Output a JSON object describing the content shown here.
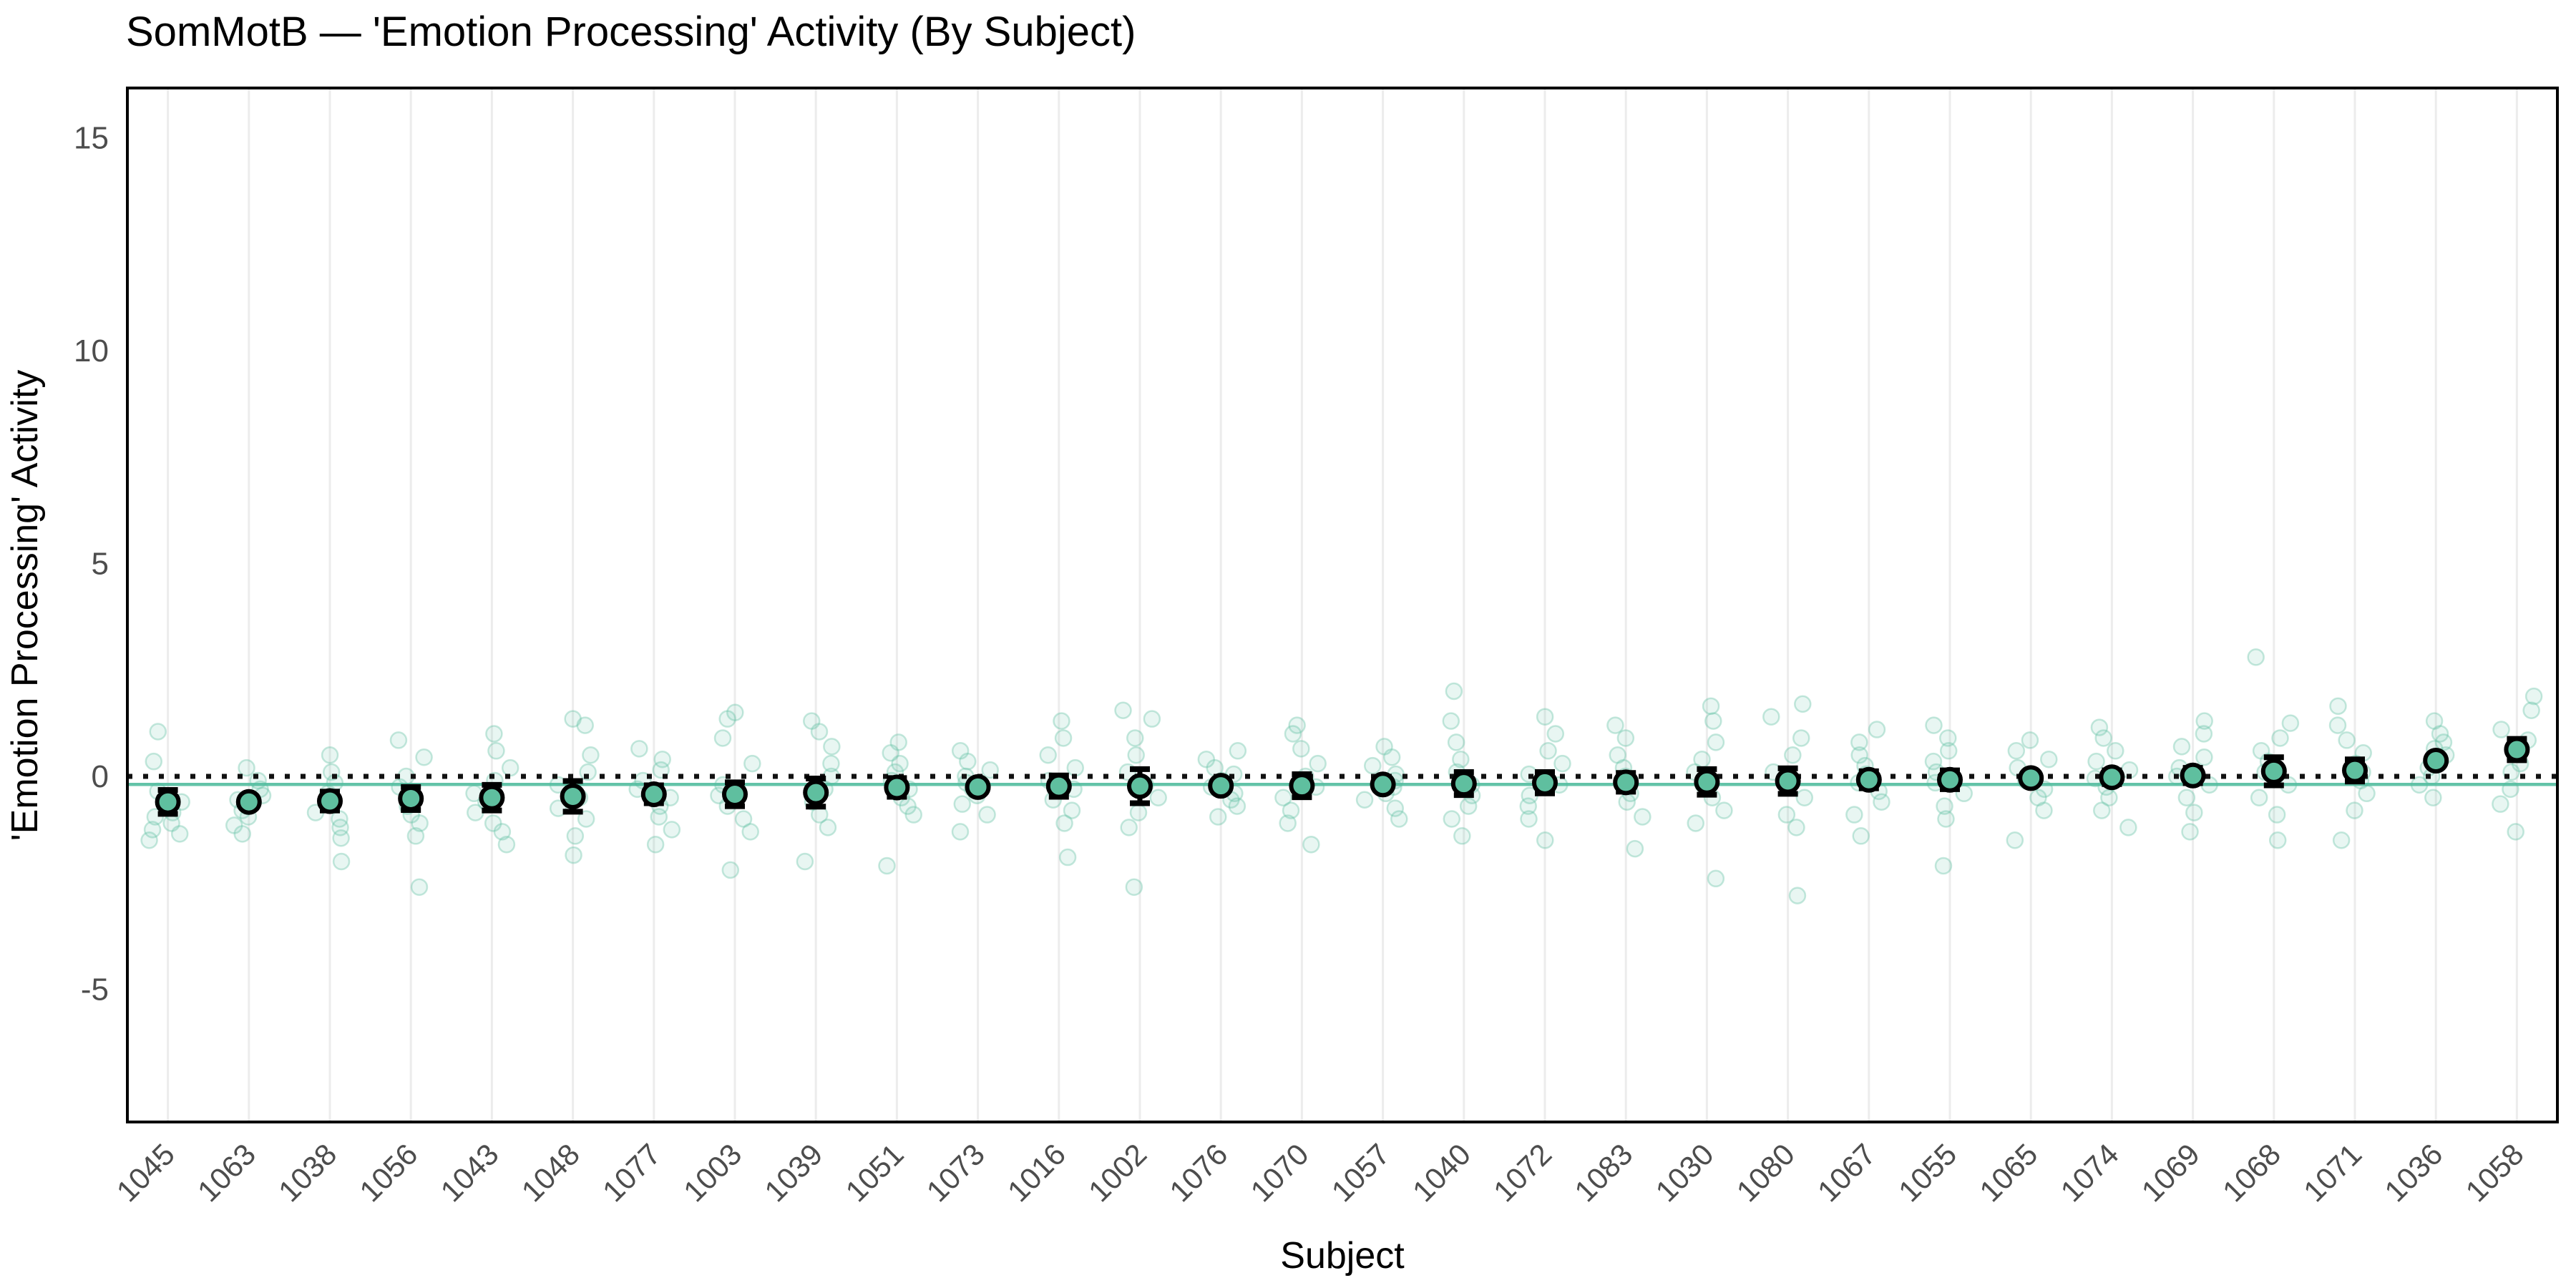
{
  "chart_data": {
    "type": "scatter",
    "title": "SomMotB — 'Emotion Processing' Activity (By Subject)",
    "xlabel": "Subject",
    "ylabel": "'Emotion Processing' Activity",
    "y_ticks": [
      15,
      10,
      5,
      0,
      -5
    ],
    "ylim": [
      -8.1,
      16.2
    ],
    "grid": "vertical-only",
    "legend": "none",
    "reference_lines": {
      "zero_line_value": 0,
      "zero_line_style": "dotted-black",
      "grand_mean_value": -0.19,
      "grand_mean_style": "solid-green"
    },
    "colors": {
      "marker_fill": "#5FBF9F",
      "marker_stroke": "#000000",
      "trial_point": "#66C2A5",
      "grand_mean_line": "#52BD9E",
      "zero_line": "#111111",
      "gridline": "#ECECEC",
      "tick_label": "#4D4D4D",
      "panel_border": "#000000"
    },
    "subjects": [
      {
        "id": "1045",
        "mean": -0.6,
        "ci": 0.28,
        "trials": [
          -1.5,
          -1.35,
          -1.25,
          -1.1,
          -0.95,
          -0.85,
          -0.6,
          -0.35,
          0.35,
          1.05
        ]
      },
      {
        "id": "1063",
        "mean": -0.6,
        "ci": 0.13,
        "trials": [
          -1.35,
          -1.15,
          -0.95,
          -0.8,
          -0.7,
          -0.55,
          -0.45,
          -0.3,
          -0.1,
          0.2
        ]
      },
      {
        "id": "1038",
        "mean": -0.58,
        "ci": 0.22,
        "trials": [
          -2.0,
          -1.45,
          -1.2,
          -1.0,
          -0.85,
          -0.6,
          -0.4,
          -0.15,
          0.1,
          0.5
        ]
      },
      {
        "id": "1056",
        "mean": -0.52,
        "ci": 0.27,
        "trials": [
          -2.6,
          -1.4,
          -1.1,
          -0.9,
          -0.7,
          -0.5,
          -0.25,
          0.0,
          0.45,
          0.85
        ]
      },
      {
        "id": "1043",
        "mean": -0.5,
        "ci": 0.3,
        "trials": [
          -1.6,
          -1.3,
          -1.1,
          -0.85,
          -0.6,
          -0.4,
          -0.1,
          0.2,
          0.6,
          1.0
        ]
      },
      {
        "id": "1048",
        "mean": -0.47,
        "ci": 0.36,
        "trials": [
          -1.85,
          -1.4,
          -1.0,
          -0.75,
          -0.5,
          -0.2,
          0.1,
          0.5,
          1.2,
          1.35
        ]
      },
      {
        "id": "1077",
        "mean": -0.42,
        "ci": 0.21,
        "trials": [
          -1.6,
          -1.25,
          -0.95,
          -0.7,
          -0.5,
          -0.3,
          -0.1,
          0.15,
          0.4,
          0.65
        ]
      },
      {
        "id": "1003",
        "mean": -0.42,
        "ci": 0.28,
        "trials": [
          -2.2,
          -1.3,
          -1.0,
          -0.7,
          -0.45,
          -0.2,
          0.3,
          0.9,
          1.35,
          1.5
        ]
      },
      {
        "id": "1039",
        "mean": -0.38,
        "ci": 0.33,
        "trials": [
          -2.0,
          -1.2,
          -0.9,
          -0.6,
          -0.3,
          0.0,
          0.3,
          0.7,
          1.05,
          1.3
        ]
      },
      {
        "id": "1051",
        "mean": -0.26,
        "ci": 0.22,
        "trials": [
          -2.1,
          -0.9,
          -0.7,
          -0.5,
          -0.3,
          -0.1,
          0.1,
          0.3,
          0.55,
          0.8
        ]
      },
      {
        "id": "1073",
        "mean": -0.25,
        "ci": 0.12,
        "trials": [
          -1.3,
          -0.9,
          -0.65,
          -0.45,
          -0.3,
          -0.15,
          0.0,
          0.15,
          0.35,
          0.6
        ]
      },
      {
        "id": "1016",
        "mean": -0.23,
        "ci": 0.25,
        "trials": [
          -1.9,
          -1.1,
          -0.8,
          -0.55,
          -0.3,
          -0.1,
          0.2,
          0.5,
          0.9,
          1.3
        ]
      },
      {
        "id": "1002",
        "mean": -0.23,
        "ci": 0.4,
        "trials": [
          -2.6,
          -1.2,
          -0.85,
          -0.5,
          -0.2,
          0.1,
          0.5,
          0.9,
          1.35,
          1.55
        ]
      },
      {
        "id": "1076",
        "mean": -0.22,
        "ci": 0.12,
        "trials": [
          -0.95,
          -0.7,
          -0.55,
          -0.4,
          -0.25,
          -0.1,
          0.05,
          0.2,
          0.4,
          0.6
        ]
      },
      {
        "id": "1070",
        "mean": -0.22,
        "ci": 0.27,
        "trials": [
          -1.6,
          -1.1,
          -0.8,
          -0.5,
          -0.25,
          0.0,
          0.3,
          0.65,
          1.0,
          1.2
        ]
      },
      {
        "id": "1057",
        "mean": -0.19,
        "ci": 0.13,
        "trials": [
          -1.0,
          -0.75,
          -0.55,
          -0.4,
          -0.25,
          -0.1,
          0.05,
          0.25,
          0.45,
          0.7
        ]
      },
      {
        "id": "1040",
        "mean": -0.17,
        "ci": 0.27,
        "trials": [
          -1.4,
          -1.0,
          -0.7,
          -0.45,
          -0.2,
          0.1,
          0.4,
          0.8,
          1.3,
          2.0
        ]
      },
      {
        "id": "1072",
        "mean": -0.15,
        "ci": 0.25,
        "trials": [
          -1.5,
          -1.0,
          -0.7,
          -0.45,
          -0.2,
          0.05,
          0.3,
          0.6,
          1.0,
          1.4
        ]
      },
      {
        "id": "1083",
        "mean": -0.14,
        "ci": 0.22,
        "trials": [
          -1.7,
          -0.95,
          -0.6,
          -0.4,
          -0.2,
          0.0,
          0.2,
          0.5,
          0.9,
          1.2
        ]
      },
      {
        "id": "1030",
        "mean": -0.13,
        "ci": 0.3,
        "trials": [
          -2.4,
          -1.1,
          -0.8,
          -0.5,
          -0.2,
          0.1,
          0.4,
          0.8,
          1.3,
          1.65
        ]
      },
      {
        "id": "1080",
        "mean": -0.11,
        "ci": 0.3,
        "trials": [
          -2.8,
          -1.2,
          -0.9,
          -0.5,
          -0.2,
          0.1,
          0.5,
          0.9,
          1.4,
          1.7
        ]
      },
      {
        "id": "1067",
        "mean": -0.08,
        "ci": 0.2,
        "trials": [
          -1.4,
          -0.9,
          -0.6,
          -0.35,
          -0.15,
          0.05,
          0.25,
          0.5,
          0.8,
          1.1
        ]
      },
      {
        "id": "1055",
        "mean": -0.08,
        "ci": 0.22,
        "trials": [
          -2.1,
          -1.0,
          -0.7,
          -0.4,
          -0.15,
          0.1,
          0.35,
          0.6,
          0.9,
          1.2
        ]
      },
      {
        "id": "1065",
        "mean": -0.04,
        "ci": 0.1,
        "trials": [
          -1.5,
          -0.8,
          -0.5,
          -0.3,
          -0.1,
          0.05,
          0.2,
          0.4,
          0.6,
          0.85
        ]
      },
      {
        "id": "1074",
        "mean": -0.02,
        "ci": 0.16,
        "trials": [
          -1.2,
          -0.8,
          -0.5,
          -0.25,
          -0.05,
          0.15,
          0.35,
          0.6,
          0.9,
          1.15
        ]
      },
      {
        "id": "1069",
        "mean": 0.02,
        "ci": 0.18,
        "trials": [
          -1.3,
          -0.85,
          -0.5,
          -0.2,
          0.0,
          0.2,
          0.45,
          0.7,
          1.0,
          1.3
        ]
      },
      {
        "id": "1068",
        "mean": 0.12,
        "ci": 0.33,
        "trials": [
          -1.5,
          -0.9,
          -0.5,
          -0.2,
          0.1,
          0.35,
          0.6,
          0.9,
          1.25,
          2.8
        ]
      },
      {
        "id": "1071",
        "mean": 0.14,
        "ci": 0.26,
        "trials": [
          -1.5,
          -0.8,
          -0.4,
          -0.1,
          0.1,
          0.3,
          0.55,
          0.85,
          1.2,
          1.65
        ]
      },
      {
        "id": "1036",
        "mean": 0.37,
        "ci": 0.08,
        "trials": [
          -0.5,
          -0.2,
          0.0,
          0.2,
          0.35,
          0.5,
          0.65,
          0.8,
          1.0,
          1.3
        ]
      },
      {
        "id": "1058",
        "mean": 0.63,
        "ci": 0.25,
        "trials": [
          -1.3,
          -0.65,
          -0.3,
          0.1,
          0.3,
          0.6,
          0.85,
          1.1,
          1.55,
          1.88
        ]
      }
    ]
  }
}
